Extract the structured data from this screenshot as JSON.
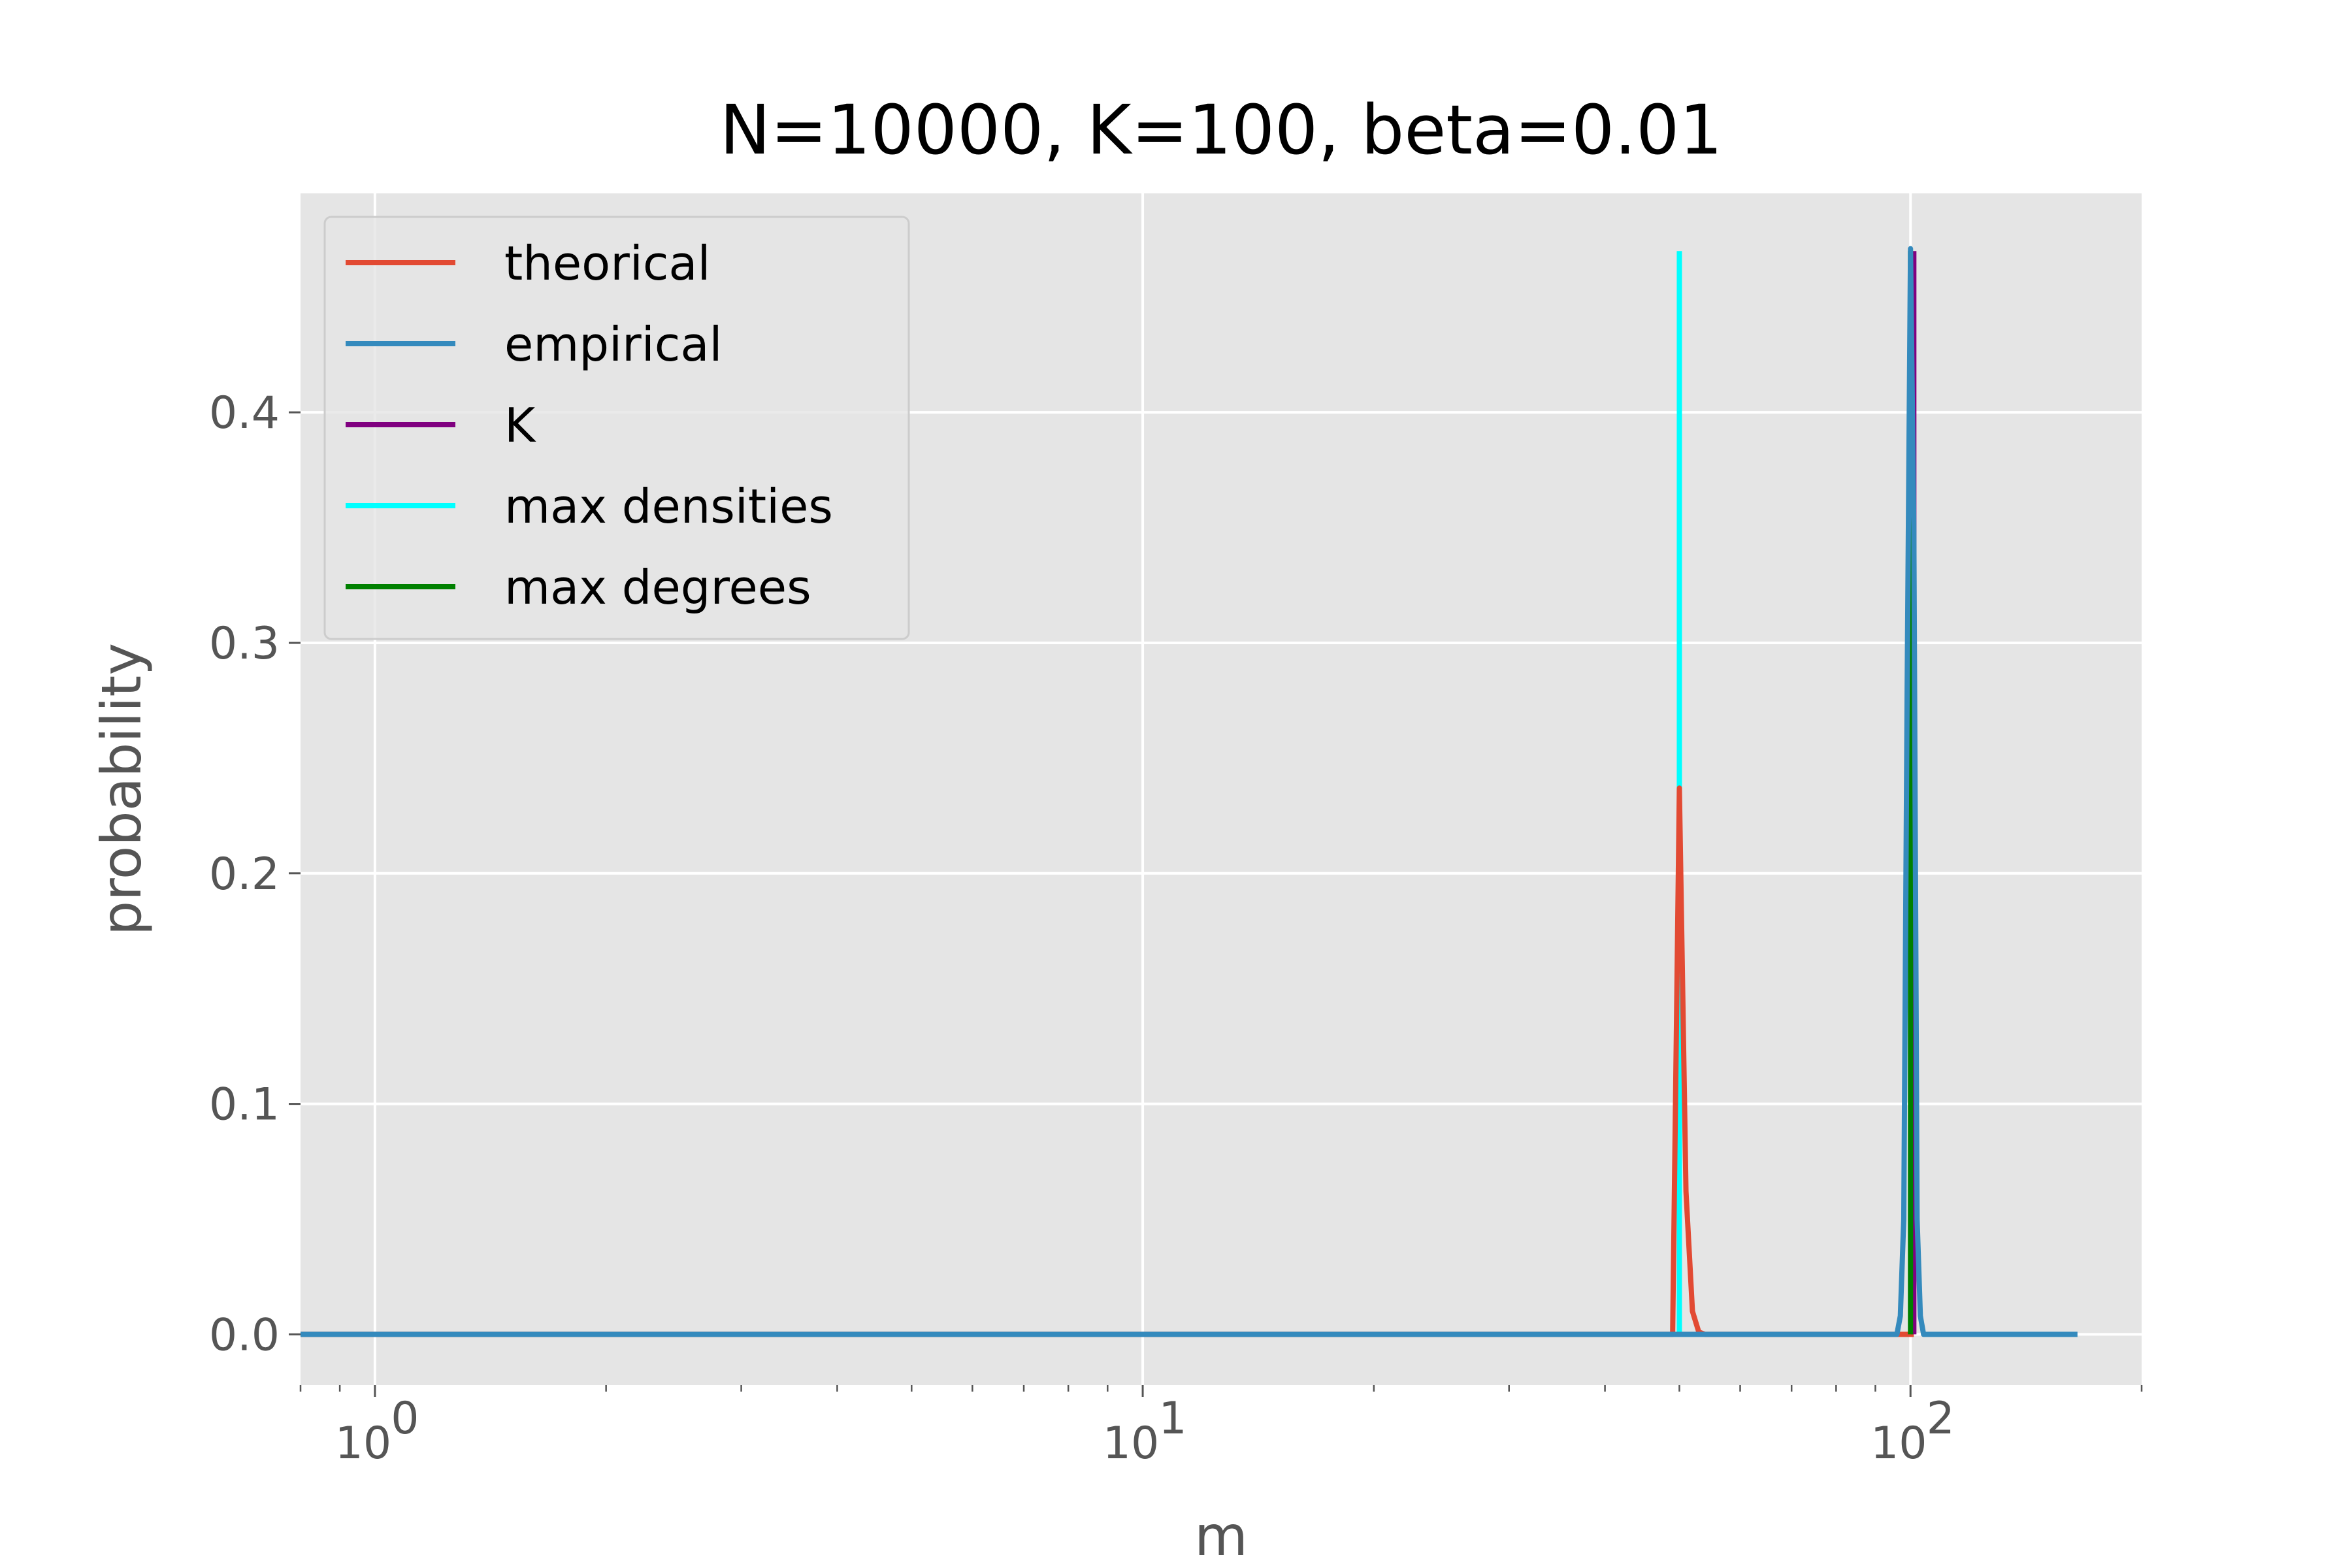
{
  "chart_data": {
    "type": "line",
    "title": "N=10000, K=100, beta=0.01",
    "xlabel": "m",
    "ylabel": "probability",
    "xscale": "log",
    "xlim": [
      0.8,
      200
    ],
    "ylim": [
      -0.022,
      0.495
    ],
    "grid": true,
    "legend_position": "top-left",
    "x_ticks": [
      {
        "value": 1,
        "label": "10",
        "exp": "0"
      },
      {
        "value": 10,
        "label": "10",
        "exp": "1"
      },
      {
        "value": 100,
        "label": "10",
        "exp": "2"
      }
    ],
    "y_ticks": [
      {
        "value": 0.0,
        "label": "0.0"
      },
      {
        "value": 0.1,
        "label": "0.1"
      },
      {
        "value": 0.2,
        "label": "0.2"
      },
      {
        "value": 0.3,
        "label": "0.3"
      },
      {
        "value": 0.4,
        "label": "0.4"
      }
    ],
    "series": [
      {
        "name": "theorical",
        "color": "#E24A33",
        "points": [
          [
            0.8,
            0
          ],
          [
            49,
            0
          ],
          [
            50,
            0.237
          ],
          [
            51,
            0.062
          ],
          [
            52,
            0.01
          ],
          [
            53,
            0.001
          ],
          [
            54,
            0
          ],
          [
            99,
            0
          ],
          [
            100,
            0
          ],
          [
            101,
            0
          ]
        ]
      },
      {
        "name": "empirical",
        "color": "#348ABD",
        "points": [
          [
            0.8,
            0
          ],
          [
            96,
            0
          ],
          [
            97,
            0.008
          ],
          [
            98,
            0.05
          ],
          [
            99,
            0.28
          ],
          [
            100,
            0.471
          ],
          [
            101,
            0.35
          ],
          [
            102,
            0.05
          ],
          [
            103,
            0.008
          ],
          [
            104,
            0
          ],
          [
            165,
            0
          ]
        ]
      },
      {
        "name": "K",
        "color": "#800080",
        "points": [
          [
            101,
            0
          ],
          [
            101,
            0.47
          ]
        ]
      },
      {
        "name": "max densities",
        "color": "#00FFFF",
        "points": [
          [
            50,
            0
          ],
          [
            50,
            0.47
          ]
        ]
      },
      {
        "name": "max degrees",
        "color": "#008000",
        "points": [
          [
            100,
            0
          ],
          [
            100,
            0.47
          ]
        ]
      }
    ]
  }
}
